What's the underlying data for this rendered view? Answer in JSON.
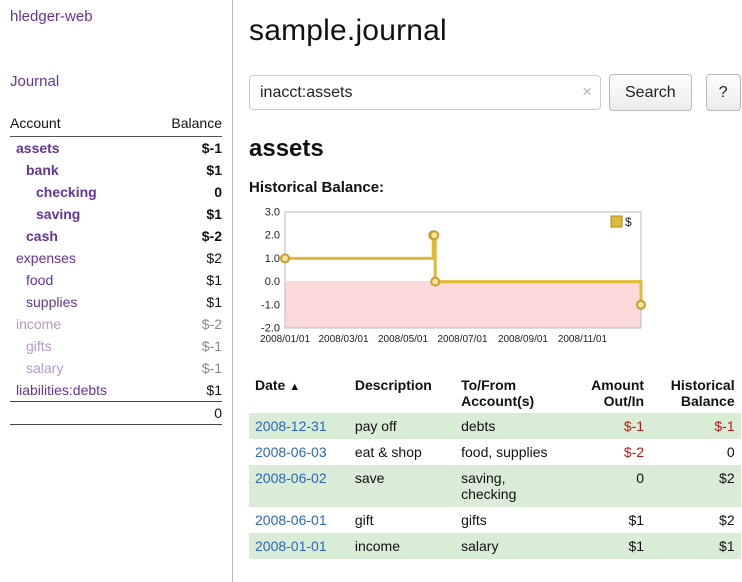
{
  "sidebar": {
    "brand": "hledger-web",
    "journal_label": "Journal",
    "header": {
      "account": "Account",
      "balance": "Balance"
    },
    "accounts": [
      {
        "name": "assets",
        "balance": "$-1",
        "indent": 0,
        "bold": true,
        "neg": true,
        "dim": false
      },
      {
        "name": "bank",
        "balance": "$1",
        "indent": 1,
        "bold": true,
        "neg": false,
        "dim": false
      },
      {
        "name": "checking",
        "balance": "0",
        "indent": 2,
        "bold": true,
        "neg": false,
        "dim": false
      },
      {
        "name": "saving",
        "balance": "$1",
        "indent": 2,
        "bold": true,
        "neg": false,
        "dim": false
      },
      {
        "name": "cash",
        "balance": "$-2",
        "indent": 1,
        "bold": true,
        "neg": true,
        "dim": false
      },
      {
        "name": "expenses",
        "balance": "$2",
        "indent": 0,
        "bold": false,
        "neg": false,
        "dim": false
      },
      {
        "name": "food",
        "balance": "$1",
        "indent": 1,
        "bold": false,
        "neg": false,
        "dim": false
      },
      {
        "name": "supplies",
        "balance": "$1",
        "indent": 1,
        "bold": false,
        "neg": false,
        "dim": false
      },
      {
        "name": "income",
        "balance": "$-2",
        "indent": 0,
        "bold": false,
        "neg": true,
        "dim": true
      },
      {
        "name": "gifts",
        "balance": "$-1",
        "indent": 1,
        "bold": false,
        "neg": true,
        "dim": true
      },
      {
        "name": "salary",
        "balance": "$-1",
        "indent": 1,
        "bold": false,
        "neg": true,
        "dim": true
      },
      {
        "name": "liabilities:debts",
        "balance": "$1",
        "indent": 0,
        "bold": false,
        "neg": false,
        "dim": false
      }
    ],
    "total": "0"
  },
  "main": {
    "title": "sample.journal",
    "search": {
      "value": "inacct:assets",
      "clear_icon": "×",
      "button": "Search",
      "help": "?"
    },
    "account_heading": "assets",
    "chart_label": "Historical Balance:"
  },
  "chart_data": {
    "type": "line",
    "step": true,
    "title": "Historical Balance",
    "series": [
      {
        "name": "$",
        "color": "#e2b935",
        "points": [
          [
            "2008-01-01",
            1
          ],
          [
            "2008-06-01",
            2
          ],
          [
            "2008-06-02",
            2
          ],
          [
            "2008-06-03",
            0
          ],
          [
            "2008-12-31",
            -1
          ]
        ]
      }
    ],
    "ylim": [
      -2,
      3
    ],
    "yticks": [
      3.0,
      2.0,
      1.0,
      0.0,
      -1.0,
      -2.0
    ],
    "xticks": [
      "2008/01/01",
      "2008/03/01",
      "2008/05/01",
      "2008/07/01",
      "2008/09/01",
      "2008/11/01"
    ],
    "negative_fill": "#fbd9d9",
    "legend_position": "top-right",
    "grid": false
  },
  "table": {
    "sort_icon": "▲",
    "headers": [
      "Date",
      "Description",
      "To/From\nAccount(s)",
      "Amount\nOut/In",
      "Historical\nBalance"
    ],
    "rows": [
      {
        "date": "2008-12-31",
        "description": "pay off",
        "accounts": "debts",
        "amount": "$-1",
        "amount_neg": true,
        "balance": "$-1",
        "balance_neg": true,
        "shade": true
      },
      {
        "date": "2008-06-03",
        "description": "eat & shop",
        "accounts": "food, supplies",
        "amount": "$-2",
        "amount_neg": true,
        "balance": "0",
        "balance_neg": false,
        "shade": false
      },
      {
        "date": "2008-06-02",
        "description": "save",
        "accounts": "saving,\nchecking",
        "amount": "0",
        "amount_neg": false,
        "balance": "$2",
        "balance_neg": false,
        "shade": true
      },
      {
        "date": "2008-06-01",
        "description": "gift",
        "accounts": "gifts",
        "amount": "$1",
        "amount_neg": false,
        "balance": "$2",
        "balance_neg": false,
        "shade": false
      },
      {
        "date": "2008-01-01",
        "description": "income",
        "accounts": "salary",
        "amount": "$1",
        "amount_neg": false,
        "balance": "$1",
        "balance_neg": false,
        "shade": true
      }
    ]
  }
}
